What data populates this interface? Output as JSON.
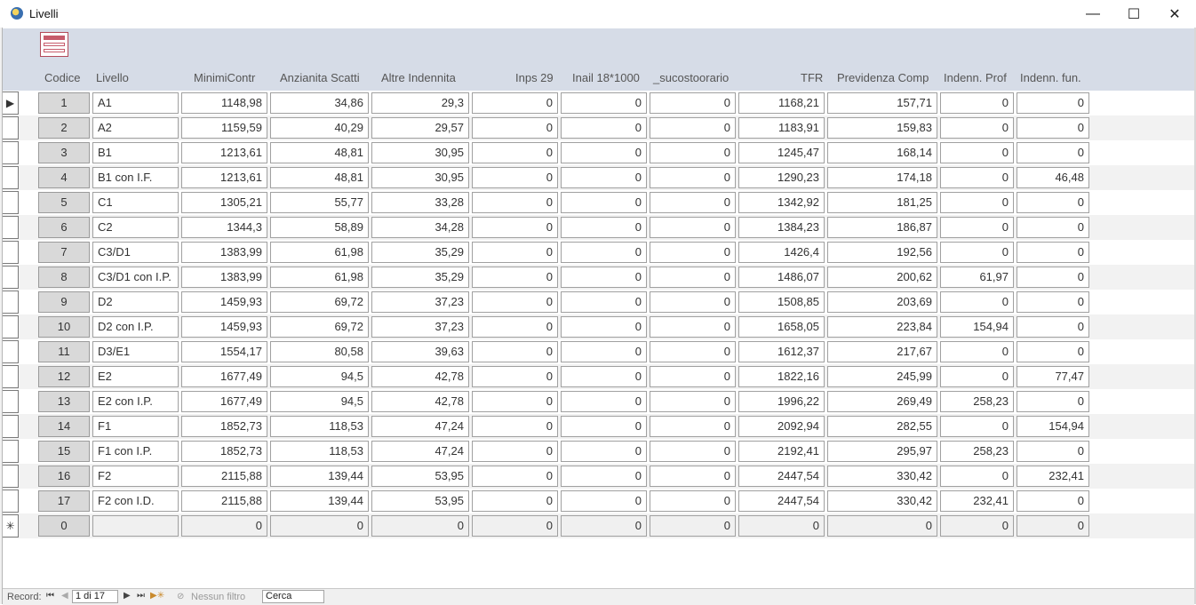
{
  "window": {
    "title": "Livelli",
    "minimize_glyph": "—",
    "maximize_glyph": "☐",
    "close_glyph": "✕"
  },
  "columns": {
    "codice": "Codice",
    "livello": "Livello",
    "minimi": "MinimiContr",
    "anzianita": "Anzianita Scatti",
    "altre": "Altre Indennita",
    "inps": "Inps 29",
    "inail": "Inail 18*1000",
    "sucosto": "_sucostoorario",
    "tfr": "TFR",
    "previdenza": "Previdenza Comp",
    "indenn_prof": "Indenn. Prof",
    "indenn_fun": "Indenn. fun."
  },
  "rows": [
    {
      "codice": "1",
      "livello": "A1",
      "minimi": "1148,98",
      "anzianita": "34,86",
      "altre": "29,3",
      "inps": "0",
      "inail": "0",
      "sucosto": "0",
      "tfr": "1168,21",
      "previdenza": "157,71",
      "indenn_prof": "0",
      "indenn_fun": "0",
      "selector": "▶"
    },
    {
      "codice": "2",
      "livello": "A2",
      "minimi": "1159,59",
      "anzianita": "40,29",
      "altre": "29,57",
      "inps": "0",
      "inail": "0",
      "sucosto": "0",
      "tfr": "1183,91",
      "previdenza": "159,83",
      "indenn_prof": "0",
      "indenn_fun": "0",
      "selector": ""
    },
    {
      "codice": "3",
      "livello": "B1",
      "minimi": "1213,61",
      "anzianita": "48,81",
      "altre": "30,95",
      "inps": "0",
      "inail": "0",
      "sucosto": "0",
      "tfr": "1245,47",
      "previdenza": "168,14",
      "indenn_prof": "0",
      "indenn_fun": "0",
      "selector": ""
    },
    {
      "codice": "4",
      "livello": "B1 con I.F.",
      "minimi": "1213,61",
      "anzianita": "48,81",
      "altre": "30,95",
      "inps": "0",
      "inail": "0",
      "sucosto": "0",
      "tfr": "1290,23",
      "previdenza": "174,18",
      "indenn_prof": "0",
      "indenn_fun": "46,48",
      "selector": ""
    },
    {
      "codice": "5",
      "livello": "C1",
      "minimi": "1305,21",
      "anzianita": "55,77",
      "altre": "33,28",
      "inps": "0",
      "inail": "0",
      "sucosto": "0",
      "tfr": "1342,92",
      "previdenza": "181,25",
      "indenn_prof": "0",
      "indenn_fun": "0",
      "selector": ""
    },
    {
      "codice": "6",
      "livello": "C2",
      "minimi": "1344,3",
      "anzianita": "58,89",
      "altre": "34,28",
      "inps": "0",
      "inail": "0",
      "sucosto": "0",
      "tfr": "1384,23",
      "previdenza": "186,87",
      "indenn_prof": "0",
      "indenn_fun": "0",
      "selector": ""
    },
    {
      "codice": "7",
      "livello": "C3/D1",
      "minimi": "1383,99",
      "anzianita": "61,98",
      "altre": "35,29",
      "inps": "0",
      "inail": "0",
      "sucosto": "0",
      "tfr": "1426,4",
      "previdenza": "192,56",
      "indenn_prof": "0",
      "indenn_fun": "0",
      "selector": ""
    },
    {
      "codice": "8",
      "livello": "C3/D1 con I.P.",
      "minimi": "1383,99",
      "anzianita": "61,98",
      "altre": "35,29",
      "inps": "0",
      "inail": "0",
      "sucosto": "0",
      "tfr": "1486,07",
      "previdenza": "200,62",
      "indenn_prof": "61,97",
      "indenn_fun": "0",
      "selector": ""
    },
    {
      "codice": "9",
      "livello": "D2",
      "minimi": "1459,93",
      "anzianita": "69,72",
      "altre": "37,23",
      "inps": "0",
      "inail": "0",
      "sucosto": "0",
      "tfr": "1508,85",
      "previdenza": "203,69",
      "indenn_prof": "0",
      "indenn_fun": "0",
      "selector": ""
    },
    {
      "codice": "10",
      "livello": "D2 con I.P.",
      "minimi": "1459,93",
      "anzianita": "69,72",
      "altre": "37,23",
      "inps": "0",
      "inail": "0",
      "sucosto": "0",
      "tfr": "1658,05",
      "previdenza": "223,84",
      "indenn_prof": "154,94",
      "indenn_fun": "0",
      "selector": ""
    },
    {
      "codice": "11",
      "livello": "D3/E1",
      "minimi": "1554,17",
      "anzianita": "80,58",
      "altre": "39,63",
      "inps": "0",
      "inail": "0",
      "sucosto": "0",
      "tfr": "1612,37",
      "previdenza": "217,67",
      "indenn_prof": "0",
      "indenn_fun": "0",
      "selector": ""
    },
    {
      "codice": "12",
      "livello": "E2",
      "minimi": "1677,49",
      "anzianita": "94,5",
      "altre": "42,78",
      "inps": "0",
      "inail": "0",
      "sucosto": "0",
      "tfr": "1822,16",
      "previdenza": "245,99",
      "indenn_prof": "0",
      "indenn_fun": "77,47",
      "selector": ""
    },
    {
      "codice": "13",
      "livello": "E2 con I.P.",
      "minimi": "1677,49",
      "anzianita": "94,5",
      "altre": "42,78",
      "inps": "0",
      "inail": "0",
      "sucosto": "0",
      "tfr": "1996,22",
      "previdenza": "269,49",
      "indenn_prof": "258,23",
      "indenn_fun": "0",
      "selector": ""
    },
    {
      "codice": "14",
      "livello": "F1",
      "minimi": "1852,73",
      "anzianita": "118,53",
      "altre": "47,24",
      "inps": "0",
      "inail": "0",
      "sucosto": "0",
      "tfr": "2092,94",
      "previdenza": "282,55",
      "indenn_prof": "0",
      "indenn_fun": "154,94",
      "selector": ""
    },
    {
      "codice": "15",
      "livello": "F1 con I.P.",
      "minimi": "1852,73",
      "anzianita": "118,53",
      "altre": "47,24",
      "inps": "0",
      "inail": "0",
      "sucosto": "0",
      "tfr": "2192,41",
      "previdenza": "295,97",
      "indenn_prof": "258,23",
      "indenn_fun": "0",
      "selector": ""
    },
    {
      "codice": "16",
      "livello": "F2",
      "minimi": "2115,88",
      "anzianita": "139,44",
      "altre": "53,95",
      "inps": "0",
      "inail": "0",
      "sucosto": "0",
      "tfr": "2447,54",
      "previdenza": "330,42",
      "indenn_prof": "0",
      "indenn_fun": "232,41",
      "selector": ""
    },
    {
      "codice": "17",
      "livello": "F2 con I.D.",
      "minimi": "2115,88",
      "anzianita": "139,44",
      "altre": "53,95",
      "inps": "0",
      "inail": "0",
      "sucosto": "0",
      "tfr": "2447,54",
      "previdenza": "330,42",
      "indenn_prof": "232,41",
      "indenn_fun": "0",
      "selector": ""
    },
    {
      "codice": "0",
      "livello": "",
      "minimi": "0",
      "anzianita": "0",
      "altre": "0",
      "inps": "0",
      "inail": "0",
      "sucosto": "0",
      "tfr": "0",
      "previdenza": "0",
      "indenn_prof": "0",
      "indenn_fun": "0",
      "selector": "✳"
    }
  ],
  "statusbar": {
    "record_label": "Record:",
    "first_glyph": "⏮",
    "prev_glyph": "◀",
    "position": "1 di 17",
    "next_glyph": "▶",
    "last_glyph": "⏭",
    "new_glyph": "▶✳",
    "filter_glyph": "⊘",
    "filter_label": "Nessun filtro",
    "search_value": "Cerca"
  }
}
